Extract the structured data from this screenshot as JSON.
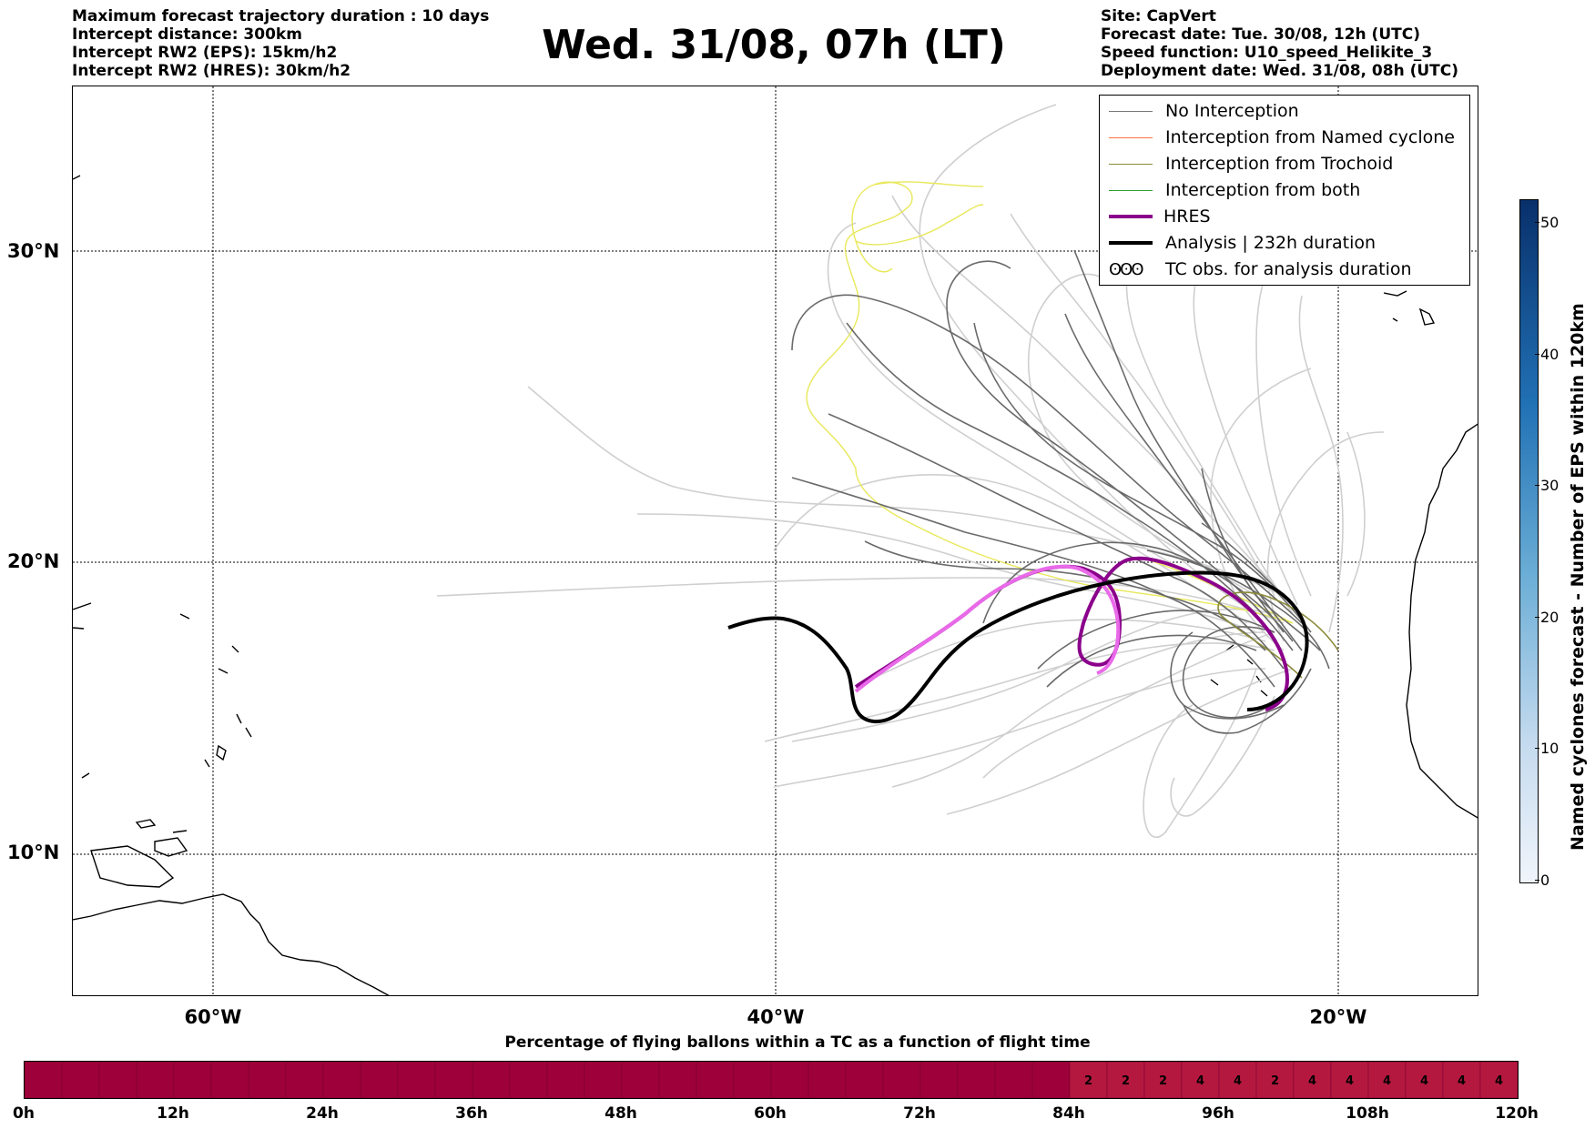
{
  "header_left": [
    "Maximum forecast trajectory duration : 10 days",
    "Intercept distance: 300km",
    "Intercept RW2 (EPS):  15km/h2",
    "Intercept RW2 (HRES): 30km/h2"
  ],
  "title": "Wed. 31/08, 07h (LT)",
  "header_right": [
    "Site: CapVert",
    "Forecast date: Tue. 30/08, 12h (UTC)",
    "Speed function: U10_speed_Helikite_3",
    "Deployment date: Wed. 31/08, 08h (UTC)"
  ],
  "lat_labels": [
    "30°N",
    "20°N",
    "10°N"
  ],
  "lon_labels": [
    "60°W",
    "40°W",
    "20°W"
  ],
  "legend": [
    {
      "label": "No Interception",
      "color": "#7a7a7a",
      "width": 1.5
    },
    {
      "label": "Interception from Named cyclone",
      "color": "#ff7043",
      "width": 1.5
    },
    {
      "label": "Interception from Trochoid",
      "color": "#8b8b3a",
      "width": 1.5
    },
    {
      "label": "Interception from both",
      "color": "#2ca02c",
      "width": 1.5
    },
    {
      "label": "HRES",
      "color": "#8b008b",
      "width": 4
    },
    {
      "label": "Analysis | 232h duration",
      "color": "#000000",
      "width": 4
    },
    {
      "label": "TC obs. for analysis duration",
      "color": "#000000",
      "width": 0
    }
  ],
  "legend_tc_symbol": "ʘʘʘ",
  "colorbar": {
    "label": "Named cyclones forecast - Number of EPS within 120km",
    "ticks": [
      "0",
      "10",
      "20",
      "30",
      "40",
      "50"
    ],
    "max": 52
  },
  "bottom_bar": {
    "title": "Percentage of flying ballons within a TC as a function of flight time",
    "base_color": "#9e0039",
    "light_color": "#b5183f",
    "tick_labels": [
      "0h",
      "12h",
      "24h",
      "36h",
      "48h",
      "60h",
      "72h",
      "84h",
      "96h",
      "108h",
      "120h"
    ],
    "cell_values": [
      "2",
      "2",
      "2",
      "4",
      "4",
      "2",
      "4",
      "4",
      "4",
      "4",
      "4",
      "4"
    ]
  }
}
